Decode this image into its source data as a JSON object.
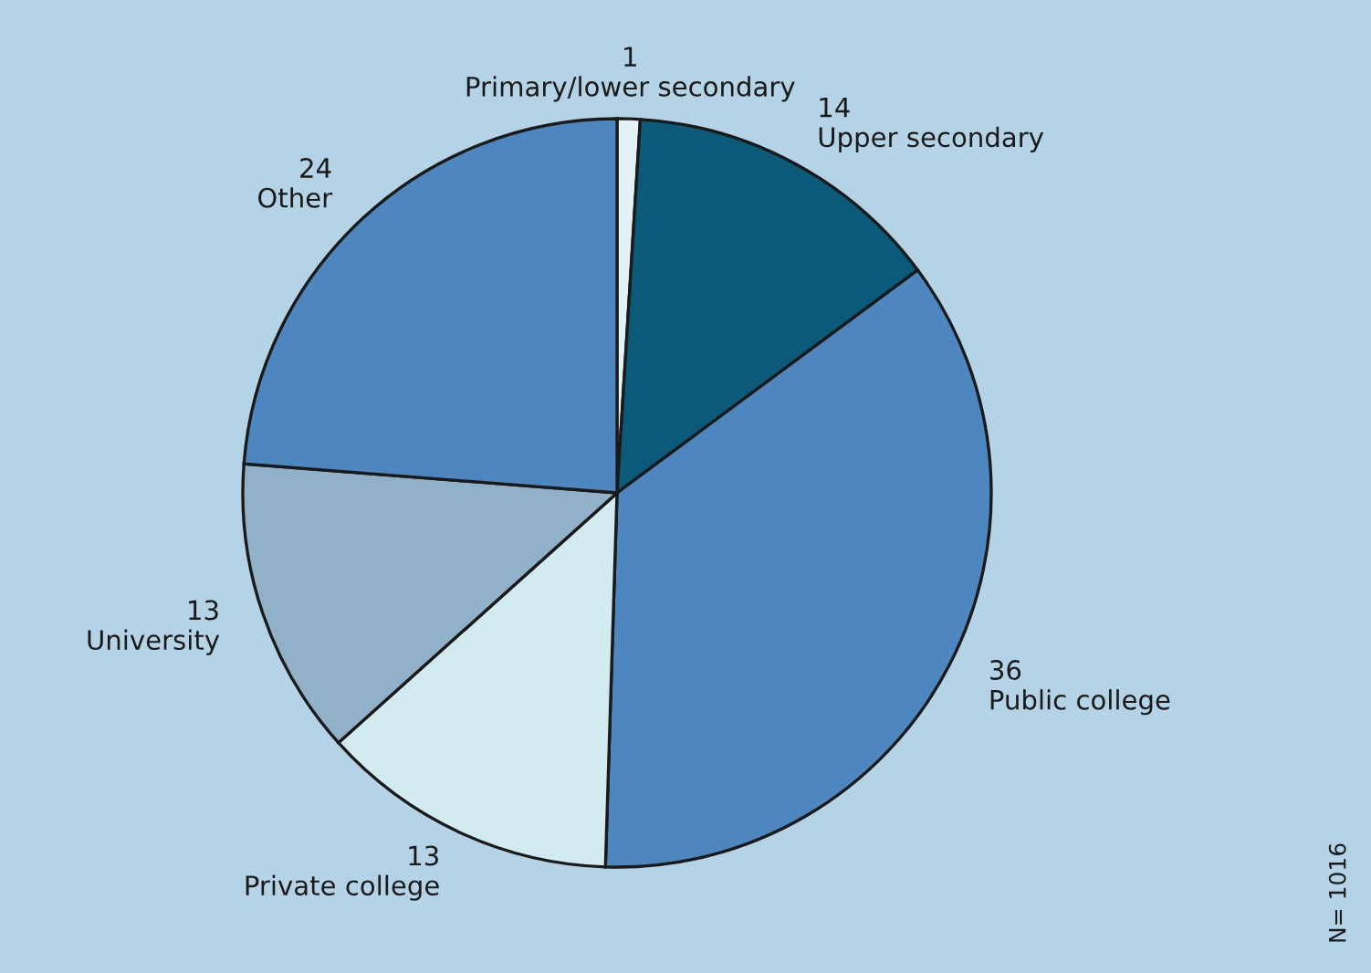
{
  "chart_data": {
    "type": "pie",
    "categories": [
      "Primary/lower secondary",
      "Upper secondary",
      "Public college",
      "Private college",
      "University",
      "Other"
    ],
    "values": [
      1,
      14,
      36,
      13,
      13,
      24
    ],
    "colors": [
      "#e2f2f7",
      "#0b5a79",
      "#4e87c0",
      "#d2ebf1",
      "#90b1c8",
      "#4e87c0"
    ],
    "data_labels": true,
    "annotations": [
      "N= 1016"
    ]
  }
}
